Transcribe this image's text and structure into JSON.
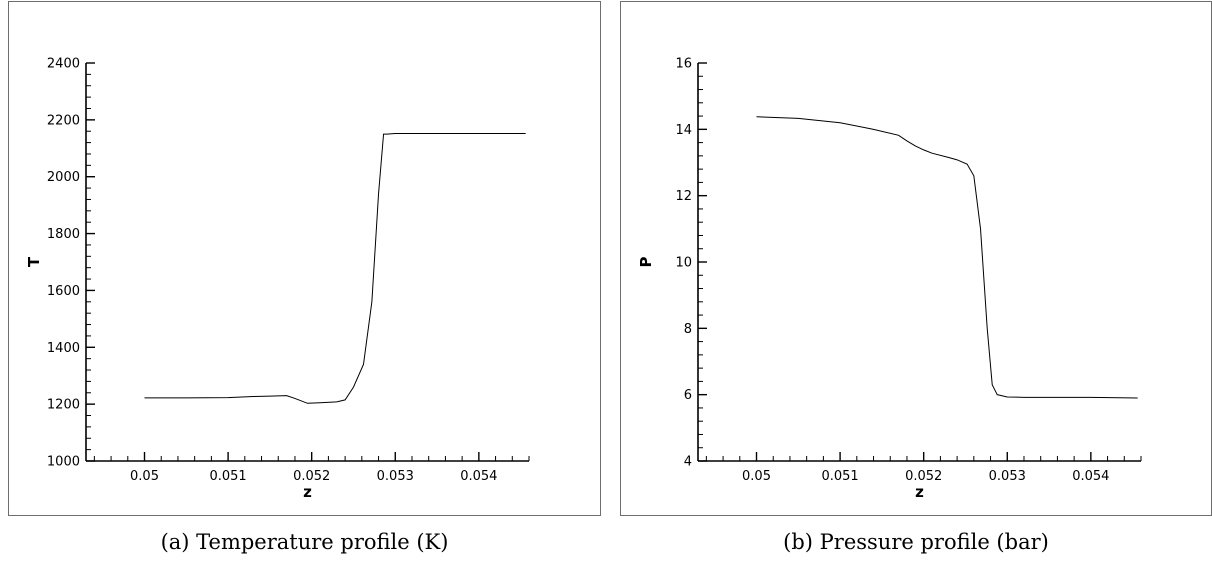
{
  "captions": {
    "a": "(a)  Temperature profile (K)",
    "b": "(b)  Pressure profile (bar)"
  },
  "colors": {
    "line": "#000000",
    "frame": "#6e6e6e",
    "axis": "#000000"
  },
  "chart_data": [
    {
      "type": "line",
      "title": "",
      "xlabel": "z",
      "ylabel": "T",
      "xlim": [
        0.0493,
        0.0546
      ],
      "ylim": [
        1000,
        2400
      ],
      "xticks": [
        0.05,
        0.051,
        0.052,
        0.053,
        0.054
      ],
      "xtick_labels": [
        "0.05",
        "0.051",
        "0.052",
        "0.053",
        "0.054"
      ],
      "yticks": [
        1000,
        1200,
        1400,
        1600,
        1800,
        2000,
        2200,
        2400
      ],
      "ytick_labels": [
        "1000",
        "1200",
        "1400",
        "1600",
        "1800",
        "2000",
        "2200",
        "2400"
      ],
      "grid": false,
      "series": [
        {
          "x": [
            0.05,
            0.0505,
            0.051,
            0.0513,
            0.0515,
            0.0517,
            0.0518,
            0.05195,
            0.0521,
            0.0523,
            0.0524,
            0.0525,
            0.05262,
            0.05272,
            0.0528,
            0.05286,
            0.0529,
            0.053,
            0.0532,
            0.0535,
            0.054,
            0.05456
          ],
          "y": [
            1222,
            1222,
            1223,
            1227,
            1228,
            1230,
            1220,
            1203,
            1205,
            1208,
            1215,
            1260,
            1340,
            1560,
            1940,
            2150,
            2150,
            2152,
            2152,
            2152,
            2152,
            2152
          ]
        }
      ]
    },
    {
      "type": "line",
      "title": "",
      "xlabel": "z",
      "ylabel": "P",
      "xlim": [
        0.0493,
        0.0546
      ],
      "ylim": [
        4,
        16
      ],
      "xticks": [
        0.05,
        0.051,
        0.052,
        0.053,
        0.054
      ],
      "xtick_labels": [
        "0.05",
        "0.051",
        "0.052",
        "0.053",
        "0.054"
      ],
      "yticks": [
        4,
        6,
        8,
        10,
        12,
        14,
        16
      ],
      "ytick_labels": [
        "4",
        "6",
        "8",
        "10",
        "12",
        "14",
        "16"
      ],
      "grid": false,
      "series": [
        {
          "x": [
            0.05,
            0.0505,
            0.051,
            0.0514,
            0.0517,
            0.0518,
            0.0519,
            0.052,
            0.0521,
            0.0523,
            0.0524,
            0.05252,
            0.0526,
            0.05268,
            0.05276,
            0.05282,
            0.05288,
            0.053,
            0.0532,
            0.0535,
            0.054,
            0.05456
          ],
          "y": [
            14.38,
            14.33,
            14.2,
            14.0,
            13.82,
            13.65,
            13.5,
            13.38,
            13.28,
            13.15,
            13.08,
            12.95,
            12.6,
            11.0,
            8.0,
            6.3,
            6.0,
            5.93,
            5.92,
            5.92,
            5.92,
            5.9
          ]
        }
      ]
    }
  ]
}
